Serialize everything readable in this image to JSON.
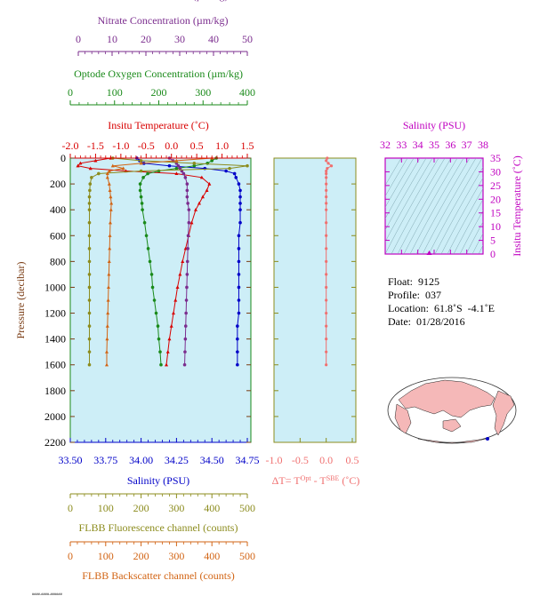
{
  "colors": {
    "plot_bg": "#cdeef7",
    "nitrate": "#7b2d8e",
    "oxygen": "#1a8a1a",
    "temperature": "#d80000",
    "salinity": "#0000c8",
    "fluorescence": "#8c8c1e",
    "backscatter": "#d26414",
    "delta_t": "#f07070",
    "magenta": "#c000c0",
    "pressure_axis": "#7a3c14"
  },
  "axes": {
    "nitrate": {
      "title": "Nitrate Concentration (µm/kg)",
      "ticks": [
        "0",
        "10",
        "20",
        "30",
        "40",
        "50"
      ]
    },
    "oxygen": {
      "title": "Optode Oxygen Concentration (µm/kg)",
      "ticks": [
        "0",
        "100",
        "200",
        "300",
        "400"
      ]
    },
    "temperature": {
      "title": "Insitu Temperature (˚C)",
      "ticks": [
        "-2.0",
        "-1.5",
        "-1.0",
        "-0.5",
        "0.0",
        "0.5",
        "1.0",
        "1.5"
      ]
    },
    "salinity": {
      "title": "Salinity (PSU)",
      "ticks": [
        "33.50",
        "33.75",
        "34.00",
        "34.25",
        "34.50",
        "34.75"
      ]
    },
    "pressure": {
      "title": "Pressure (decibar)",
      "ticks": [
        "0",
        "200",
        "400",
        "600",
        "800",
        "1000",
        "1200",
        "1400",
        "1600",
        "1800",
        "2000",
        "2200"
      ]
    },
    "fluorescence": {
      "title": "FLBB Fluorescence channel (counts)",
      "ticks": [
        "0",
        "100",
        "200",
        "300",
        "400",
        "500"
      ]
    },
    "backscatter": {
      "title": "FLBB Backscatter channel (counts)",
      "ticks": [
        "0",
        "100",
        "200",
        "300",
        "400",
        "500"
      ]
    },
    "delta_t": {
      "title_main": "ΔT= T",
      "sup1": "Opt",
      "title_mid": " - T",
      "sup2": "SBE",
      "title_end": " (˚C)",
      "ticks": [
        "-1.0",
        "-0.5",
        "0.0",
        "0.5"
      ]
    },
    "ts_salinity": {
      "title": "Salinity (PSU)",
      "ticks": [
        "32",
        "33",
        "34",
        "35",
        "36",
        "37",
        "38"
      ]
    },
    "ts_temperature": {
      "title": "Insitu Temperature (˚C)",
      "ticks": [
        "0",
        "5",
        "10",
        "15",
        "20",
        "25",
        "30",
        "35"
      ]
    }
  },
  "info": {
    "float": "Float:  9125",
    "profile": "Profile:  037",
    "location": "Location:  61.8˚S  -4.1˚E",
    "date": "Date:  01/28/2016"
  },
  "footer": "####-####-######",
  "chart_data": {
    "type": "line",
    "pressure_range": [
      0,
      2200
    ],
    "series": [
      {
        "name": "Salinity (PSU)",
        "x_range": [
          33.5,
          34.75
        ],
        "pressure": [
          0,
          20,
          40,
          60,
          80,
          100,
          120,
          150,
          200,
          250,
          300,
          350,
          400,
          500,
          600,
          700,
          800,
          900,
          1000,
          1100,
          1200,
          1300,
          1400,
          1500,
          1600
        ],
        "values": [
          33.97,
          33.99,
          34.02,
          34.2,
          34.45,
          34.6,
          34.66,
          34.67,
          34.69,
          34.7,
          34.7,
          34.7,
          34.7,
          34.7,
          34.69,
          34.69,
          34.69,
          34.69,
          34.69,
          34.69,
          34.69,
          34.68,
          34.68,
          34.68,
          34.68
        ]
      },
      {
        "name": "Insitu Temperature (˚C)",
        "x_range": [
          -2.0,
          1.5
        ],
        "pressure": [
          0,
          20,
          40,
          60,
          80,
          100,
          120,
          150,
          200,
          250,
          300,
          350,
          400,
          500,
          600,
          700,
          800,
          900,
          1000,
          1100,
          1200,
          1300,
          1400,
          1500,
          1600
        ],
        "values": [
          -1.2,
          -1.5,
          -1.8,
          -1.85,
          -1.6,
          -0.9,
          0.1,
          0.6,
          0.75,
          0.7,
          0.62,
          0.55,
          0.48,
          0.4,
          0.34,
          0.28,
          0.22,
          0.17,
          0.12,
          0.08,
          0.04,
          0.0,
          -0.04,
          -0.07,
          -0.1
        ]
      },
      {
        "name": "Optode Oxygen Concentration (µm/kg)",
        "x_range": [
          0,
          400
        ],
        "pressure": [
          0,
          20,
          40,
          60,
          80,
          100,
          120,
          150,
          200,
          250,
          300,
          350,
          400,
          500,
          600,
          700,
          800,
          900,
          1000,
          1100,
          1200,
          1300,
          1400,
          1500,
          1600
        ],
        "values": [
          330,
          320,
          310,
          280,
          240,
          200,
          175,
          165,
          158,
          158,
          160,
          162,
          163,
          168,
          172,
          176,
          180,
          184,
          186,
          190,
          194,
          198,
          200,
          203,
          205
        ]
      },
      {
        "name": "Nitrate Concentration (µm/kg)",
        "x_range": [
          0,
          50
        ],
        "pressure": [
          0,
          20,
          40,
          60,
          80,
          100,
          120,
          150,
          200,
          250,
          300,
          350,
          400,
          500,
          600,
          700,
          800,
          900,
          1000,
          1100,
          1200,
          1300,
          1400,
          1500,
          1600
        ],
        "values": [
          28,
          29,
          30,
          30.5,
          31,
          31.5,
          32,
          32.5,
          33,
          33,
          33,
          33.2,
          33.5,
          33.5,
          33.3,
          33.2,
          33.1,
          33.0,
          32.9,
          32.8,
          32.7,
          32.6,
          32.5,
          32.4,
          32.3
        ]
      },
      {
        "name": "FLBB Fluorescence channel (counts)",
        "x_range": [
          0,
          500
        ],
        "pressure": [
          0,
          20,
          40,
          60,
          80,
          100,
          120,
          150,
          200,
          250,
          300,
          350,
          400,
          500,
          600,
          700,
          800,
          900,
          1000,
          1100,
          1200,
          1300,
          1400,
          1500,
          1600
        ],
        "values": [
          120,
          200,
          350,
          500,
          450,
          200,
          80,
          60,
          56,
          55,
          54,
          54,
          54,
          54,
          54,
          54,
          54,
          54,
          54,
          54,
          54,
          54,
          54,
          54,
          54
        ]
      },
      {
        "name": "FLBB Backscatter channel (counts)",
        "x_range": [
          0,
          500
        ],
        "pressure": [
          0,
          20,
          40,
          60,
          80,
          100,
          120,
          150,
          200,
          250,
          300,
          350,
          400,
          500,
          600,
          700,
          800,
          900,
          1000,
          1100,
          1200,
          1300,
          1400,
          1500,
          1600
        ],
        "values": [
          400,
          300,
          200,
          120,
          150,
          110,
          105,
          105,
          110,
          112,
          114,
          116,
          115,
          113,
          112,
          111,
          110,
          109,
          108,
          107,
          106,
          105,
          104,
          103,
          103
        ]
      },
      {
        "name": "ΔT",
        "x_range": [
          -1.0,
          0.5
        ],
        "pressure": [
          0,
          20,
          40,
          60,
          80,
          100,
          120,
          150,
          200,
          250,
          300,
          350,
          400,
          500,
          600,
          700,
          800,
          900,
          1000,
          1100,
          1200,
          1300,
          1400,
          1500,
          1600
        ],
        "values": [
          0.02,
          0.0,
          0.04,
          0.1,
          0.02,
          0.0,
          0.0,
          0.0,
          0.0,
          0.0,
          0.0,
          0.0,
          0.0,
          0.0,
          0.0,
          0.0,
          0.0,
          0.0,
          0.0,
          0.0,
          0.0,
          0.0,
          0.0,
          0.0,
          0.0
        ]
      }
    ]
  }
}
